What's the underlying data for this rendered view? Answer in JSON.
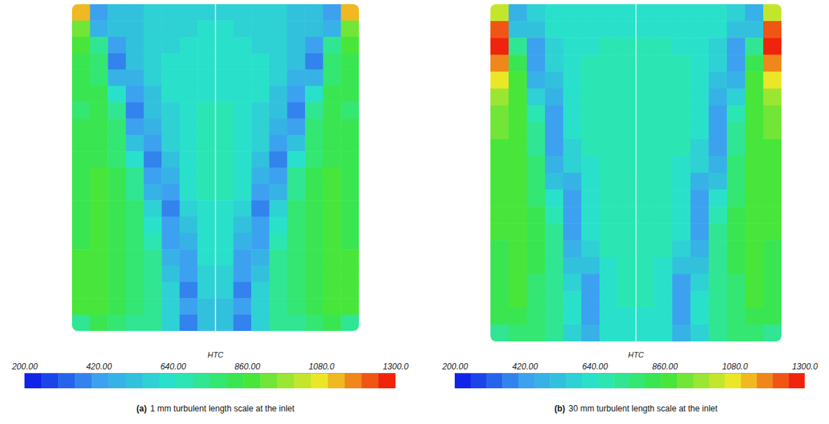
{
  "chart_data": [
    {
      "type": "heatmap",
      "panel": "(a)",
      "caption": "1 mm turbulent length scale at the inlet",
      "colorbar": {
        "title": "HTC",
        "range": [
          200,
          1300
        ],
        "ticks": [
          {
            "value": 200,
            "label": "200.00"
          },
          {
            "value": 420,
            "label": "420.00"
          },
          {
            "value": 640,
            "label": "640.00"
          },
          {
            "value": 860,
            "label": "860.00"
          },
          {
            "value": 1080,
            "label": "1080.0"
          },
          {
            "value": 1300,
            "label": "1300.0"
          }
        ]
      },
      "cells": [
        [
          1100,
          420,
          520,
          540,
          560,
          570,
          580,
          580,
          580,
          580,
          570,
          560,
          540,
          520,
          420,
          1100
        ],
        [
          950,
          480,
          500,
          540,
          560,
          580,
          590,
          600,
          600,
          590,
          580,
          560,
          540,
          500,
          480,
          950
        ],
        [
          880,
          700,
          400,
          520,
          560,
          590,
          600,
          610,
          610,
          600,
          590,
          560,
          520,
          400,
          700,
          880
        ],
        [
          820,
          760,
          380,
          500,
          560,
          600,
          610,
          620,
          620,
          610,
          600,
          560,
          500,
          380,
          760,
          820
        ],
        [
          800,
          780,
          450,
          470,
          560,
          600,
          620,
          630,
          630,
          620,
          600,
          560,
          470,
          450,
          780,
          800
        ],
        [
          800,
          800,
          600,
          400,
          540,
          600,
          630,
          640,
          640,
          630,
          600,
          540,
          400,
          600,
          800,
          800
        ],
        [
          790,
          810,
          720,
          380,
          520,
          590,
          640,
          650,
          650,
          640,
          590,
          520,
          380,
          720,
          810,
          790
        ],
        [
          800,
          820,
          760,
          420,
          480,
          580,
          640,
          660,
          660,
          640,
          580,
          480,
          420,
          760,
          820,
          800
        ],
        [
          810,
          830,
          780,
          520,
          400,
          560,
          640,
          660,
          660,
          640,
          560,
          400,
          520,
          780,
          830,
          810
        ],
        [
          820,
          840,
          790,
          640,
          380,
          520,
          630,
          660,
          660,
          630,
          520,
          380,
          640,
          790,
          840,
          820
        ],
        [
          830,
          850,
          800,
          700,
          400,
          480,
          620,
          660,
          660,
          620,
          480,
          400,
          700,
          800,
          850,
          830
        ],
        [
          830,
          850,
          810,
          740,
          460,
          420,
          600,
          650,
          650,
          600,
          420,
          460,
          740,
          810,
          850,
          830
        ],
        [
          840,
          850,
          820,
          760,
          560,
          380,
          560,
          640,
          640,
          560,
          380,
          560,
          760,
          820,
          850,
          840
        ],
        [
          840,
          860,
          820,
          770,
          640,
          400,
          520,
          630,
          630,
          520,
          400,
          640,
          770,
          820,
          860,
          840
        ],
        [
          840,
          860,
          830,
          780,
          680,
          430,
          470,
          620,
          620,
          470,
          430,
          680,
          780,
          830,
          860,
          840
        ],
        [
          850,
          860,
          830,
          780,
          700,
          480,
          420,
          600,
          600,
          420,
          480,
          700,
          780,
          830,
          860,
          850
        ],
        [
          850,
          870,
          840,
          790,
          710,
          520,
          400,
          580,
          580,
          400,
          520,
          710,
          790,
          840,
          870,
          850
        ],
        [
          860,
          870,
          840,
          790,
          720,
          560,
          390,
          560,
          560,
          390,
          560,
          720,
          790,
          840,
          870,
          860
        ],
        [
          850,
          860,
          830,
          780,
          720,
          580,
          400,
          540,
          540,
          400,
          580,
          720,
          780,
          830,
          860,
          850
        ],
        [
          700,
          800,
          780,
          740,
          700,
          560,
          380,
          520,
          520,
          380,
          560,
          700,
          740,
          780,
          800,
          700
        ]
      ]
    },
    {
      "type": "heatmap",
      "panel": "(b)",
      "caption": "30 mm turbulent length scale at the inlet",
      "colorbar": {
        "title": "HTC",
        "range": [
          200,
          1300
        ],
        "ticks": [
          {
            "value": 200,
            "label": "200.00"
          },
          {
            "value": 420,
            "label": "420.00"
          },
          {
            "value": 640,
            "label": "640.00"
          },
          {
            "value": 860,
            "label": "860.00"
          },
          {
            "value": 1080,
            "label": "1080.0"
          },
          {
            "value": 1300,
            "label": "1300.0"
          }
        ]
      },
      "cells": [
        [
          1000,
          450,
          580,
          600,
          610,
          620,
          620,
          620,
          620,
          620,
          620,
          610,
          600,
          580,
          450,
          1000
        ],
        [
          1200,
          500,
          520,
          600,
          620,
          630,
          640,
          640,
          640,
          640,
          630,
          620,
          600,
          520,
          500,
          1200
        ],
        [
          1250,
          700,
          420,
          580,
          630,
          640,
          650,
          650,
          650,
          650,
          640,
          630,
          580,
          420,
          700,
          1250
        ],
        [
          1150,
          820,
          400,
          560,
          630,
          650,
          660,
          660,
          660,
          660,
          650,
          630,
          560,
          400,
          820,
          1150
        ],
        [
          1050,
          860,
          450,
          540,
          630,
          650,
          670,
          670,
          670,
          670,
          650,
          630,
          540,
          450,
          860,
          1050
        ],
        [
          980,
          880,
          550,
          480,
          620,
          650,
          670,
          680,
          680,
          670,
          650,
          620,
          480,
          550,
          880,
          980
        ],
        [
          930,
          890,
          650,
          420,
          610,
          650,
          670,
          680,
          680,
          670,
          650,
          610,
          420,
          650,
          890,
          930
        ],
        [
          900,
          890,
          700,
          400,
          600,
          650,
          670,
          680,
          680,
          670,
          650,
          600,
          400,
          700,
          890,
          900
        ],
        [
          880,
          890,
          740,
          420,
          590,
          650,
          670,
          680,
          680,
          670,
          650,
          590,
          420,
          740,
          890,
          880
        ],
        [
          870,
          890,
          760,
          460,
          560,
          640,
          670,
          680,
          680,
          670,
          640,
          560,
          460,
          760,
          890,
          870
        ],
        [
          860,
          890,
          780,
          540,
          480,
          640,
          670,
          680,
          680,
          670,
          640,
          480,
          540,
          780,
          890,
          860
        ],
        [
          860,
          880,
          790,
          620,
          420,
          630,
          670,
          680,
          680,
          670,
          630,
          420,
          620,
          790,
          880,
          860
        ],
        [
          850,
          880,
          800,
          680,
          400,
          620,
          660,
          670,
          670,
          660,
          620,
          400,
          680,
          800,
          880,
          850
        ],
        [
          850,
          870,
          800,
          700,
          420,
          600,
          660,
          670,
          670,
          660,
          600,
          420,
          700,
          800,
          870,
          850
        ],
        [
          840,
          870,
          800,
          720,
          460,
          580,
          650,
          670,
          670,
          650,
          580,
          460,
          720,
          800,
          870,
          840
        ],
        [
          840,
          860,
          800,
          720,
          520,
          520,
          640,
          660,
          660,
          640,
          520,
          520,
          720,
          800,
          860,
          840
        ],
        [
          830,
          860,
          790,
          720,
          580,
          440,
          630,
          650,
          650,
          630,
          440,
          580,
          720,
          790,
          860,
          830
        ],
        [
          820,
          850,
          790,
          720,
          600,
          400,
          620,
          650,
          650,
          620,
          400,
          600,
          720,
          790,
          850,
          820
        ],
        [
          810,
          840,
          780,
          710,
          600,
          420,
          610,
          640,
          640,
          610,
          420,
          600,
          710,
          780,
          840,
          810
        ],
        [
          720,
          780,
          750,
          700,
          590,
          450,
          600,
          630,
          630,
          600,
          450,
          590,
          700,
          750,
          780,
          720
        ]
      ]
    }
  ]
}
